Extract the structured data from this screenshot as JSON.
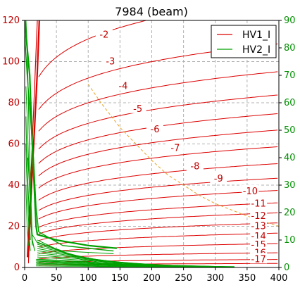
{
  "chart_data": {
    "type": "line",
    "title": "7984  (beam)",
    "xlabel": "",
    "ylabel": "",
    "y2label": "",
    "xlim": [
      0,
      400
    ],
    "ylim": [
      0,
      120
    ],
    "y2lim": [
      0,
      90
    ],
    "x_ticks": [
      0,
      50,
      100,
      150,
      200,
      250,
      300,
      350,
      400
    ],
    "y_ticks": [
      0,
      20,
      40,
      60,
      80,
      100,
      120
    ],
    "y2_ticks": [
      0,
      10,
      20,
      30,
      40,
      50,
      60,
      70,
      80,
      90
    ],
    "grid": true,
    "legend_position": "top-right",
    "colors": {
      "hv1": "#dd0000",
      "hv2": "#00a000",
      "iso_line": "#e8a020"
    },
    "series": [
      {
        "name": "HV1_I",
        "color": "#dd0000"
      },
      {
        "name": "HV2_I",
        "color": "#00a000"
      }
    ],
    "hv1_curves": [
      {
        "label": "-2",
        "a": 111,
        "b": 0.12
      },
      {
        "label": "-3",
        "a": 92,
        "b": 0.12
      },
      {
        "label": "-4",
        "a": 80,
        "b": 0.125
      },
      {
        "label": "-5",
        "a": 70,
        "b": 0.13
      },
      {
        "label": "-6",
        "a": 62,
        "b": 0.135
      },
      {
        "label": "-7",
        "a": 55,
        "b": 0.14
      },
      {
        "label": "-8",
        "a": 48,
        "b": 0.145
      },
      {
        "label": "-9",
        "a": 41,
        "b": 0.15
      },
      {
        "label": "-10",
        "a": 35,
        "b": 0.155
      },
      {
        "label": "-11",
        "a": 30,
        "b": 0.16
      },
      {
        "label": "-12",
        "a": 25,
        "b": 0.165
      },
      {
        "label": "-13",
        "a": 21,
        "b": 0.17
      },
      {
        "label": "-14",
        "a": 17,
        "b": 0.175
      },
      {
        "label": "-15",
        "a": 13,
        "b": 0.18
      },
      {
        "label": "-16",
        "a": 9,
        "b": 0.185
      },
      {
        "label": "-17",
        "a": 5.5,
        "b": 0.19
      },
      {
        "label": "",
        "a": 3,
        "b": 0.19
      },
      {
        "label": "",
        "a": 1.5,
        "b": 0.19
      }
    ],
    "contour_labels": [
      {
        "text": "-2",
        "x": 125,
        "y": 113
      },
      {
        "text": "-3",
        "x": 135,
        "y": 100
      },
      {
        "text": "-4",
        "x": 155,
        "y": 88
      },
      {
        "text": "-5",
        "x": 178,
        "y": 77
      },
      {
        "text": "-6",
        "x": 205,
        "y": 67
      },
      {
        "text": "-7",
        "x": 237,
        "y": 58
      },
      {
        "text": "-8",
        "x": 268,
        "y": 49
      },
      {
        "text": "-9",
        "x": 305,
        "y": 43
      },
      {
        "text": "-10",
        "x": 355,
        "y": 37
      },
      {
        "text": "-11",
        "x": 368,
        "y": 31
      },
      {
        "text": "-12",
        "x": 368,
        "y": 25
      },
      {
        "text": "-13",
        "x": 368,
        "y": 20
      },
      {
        "text": "-14",
        "x": 368,
        "y": 15
      },
      {
        "text": "-15",
        "x": 368,
        "y": 11
      },
      {
        "text": "-16",
        "x": 368,
        "y": 7
      },
      {
        "text": "-17",
        "x": 368,
        "y": 4
      }
    ],
    "hv1_vertical_lines": [
      {
        "points": [
          [
            5,
            5
          ],
          [
            10,
            35
          ],
          [
            16,
            70
          ],
          [
            20,
            95
          ],
          [
            23,
            120
          ]
        ],
        "width": 2.2
      },
      {
        "points": [
          [
            4,
            5
          ],
          [
            8,
            30
          ],
          [
            12,
            60
          ],
          [
            16,
            90
          ],
          [
            20,
            120
          ]
        ],
        "width": 1.2
      },
      {
        "points": [
          [
            6,
            3
          ],
          [
            8,
            15
          ],
          [
            10,
            30
          ],
          [
            12,
            45
          ]
        ],
        "width": 1.0
      },
      {
        "points": [
          [
            6,
            2
          ],
          [
            7,
            10
          ],
          [
            8,
            20
          ],
          [
            9,
            28
          ]
        ],
        "width": 1.0
      }
    ],
    "hv2_trunk": [
      {
        "points": [
          [
            0,
            90
          ],
          [
            8,
            70
          ],
          [
            12,
            45
          ],
          [
            16,
            25
          ],
          [
            18,
            15
          ],
          [
            20,
            12
          ],
          [
            50,
            10
          ],
          [
            100,
            8
          ],
          [
            145,
            7
          ]
        ],
        "width": 2.2
      },
      {
        "points": [
          [
            0,
            85
          ],
          [
            4,
            70
          ],
          [
            9,
            55
          ],
          [
            14,
            40
          ],
          [
            18,
            22
          ],
          [
            22,
            13
          ],
          [
            60,
            8
          ],
          [
            140,
            6
          ]
        ],
        "width": 1.4
      },
      {
        "points": [
          [
            5,
            40
          ],
          [
            12,
            12
          ],
          [
            20,
            9
          ],
          [
            60,
            6
          ],
          [
            140,
            5
          ]
        ],
        "width": 1.0
      }
    ],
    "hv2_left_lines": [
      {
        "points": [
          [
            2,
            90
          ],
          [
            4,
            80
          ],
          [
            6,
            60
          ],
          [
            8,
            40
          ],
          [
            10,
            24
          ],
          [
            12,
            10
          ],
          [
            16,
            6
          ]
        ],
        "width": 1.2
      },
      {
        "points": [
          [
            2,
            66
          ],
          [
            4,
            55
          ],
          [
            6,
            40
          ],
          [
            8,
            28
          ],
          [
            10,
            16
          ],
          [
            12,
            8
          ]
        ],
        "width": 1.0
      },
      {
        "points": [
          [
            2,
            55
          ],
          [
            3,
            45
          ],
          [
            5,
            32
          ],
          [
            7,
            20
          ],
          [
            9,
            10
          ]
        ],
        "width": 1.0
      },
      {
        "points": [
          [
            2,
            45
          ],
          [
            3,
            35
          ],
          [
            5,
            24
          ],
          [
            7,
            12
          ],
          [
            9,
            6
          ]
        ],
        "width": 1.0
      },
      {
        "points": [
          [
            2,
            30
          ],
          [
            3,
            22
          ],
          [
            4,
            14
          ],
          [
            6,
            8
          ]
        ],
        "width": 1.0
      }
    ],
    "hv2_fan": {
      "count": 12,
      "start_y2_max": 10,
      "start_y2_min": 1.5,
      "start_x": 20,
      "end_x_min": 120,
      "end_x_max": 330
    },
    "iso_line": {
      "points": [
        [
          100,
          89
        ],
        [
          120,
          80
        ],
        [
          150,
          68
        ],
        [
          175,
          60
        ],
        [
          200,
          52
        ],
        [
          225,
          45
        ],
        [
          250,
          40
        ],
        [
          275,
          35
        ],
        [
          300,
          31
        ],
        [
          325,
          28
        ],
        [
          350,
          25
        ],
        [
          400,
          20
        ]
      ]
    }
  }
}
